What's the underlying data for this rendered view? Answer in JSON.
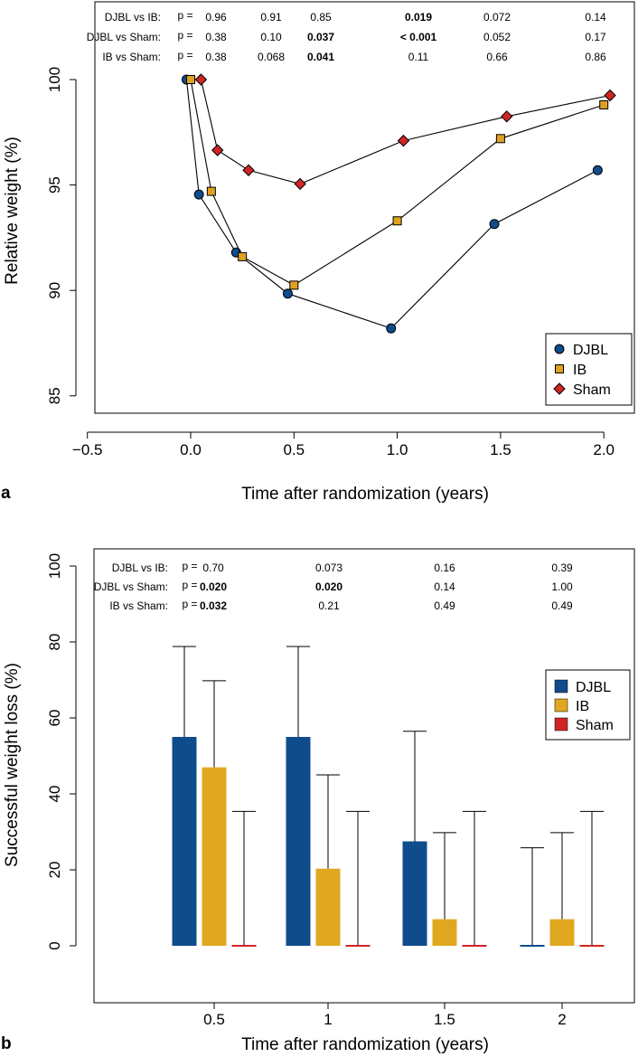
{
  "chart_data": [
    {
      "panel_label": "a",
      "type": "line",
      "title": "",
      "xlabel": "Time after randomization (years)",
      "ylabel": "Relative weight (%)",
      "xlim": [
        -0.5,
        2.1
      ],
      "ylim": [
        84,
        103.5
      ],
      "xticks": [
        "−0.5",
        "0.0",
        "0.5",
        "1.0",
        "1.5",
        "2.0"
      ],
      "xtick_values": [
        -0.5,
        0.0,
        0.5,
        1.0,
        1.5,
        2.0
      ],
      "yticks": [
        "85",
        "90",
        "95",
        "100"
      ],
      "ytick_values": [
        85,
        90,
        95,
        100
      ],
      "legend": "bottom-right",
      "series": [
        {
          "name": "DJBL",
          "marker": "circle",
          "color": "#0f4c8c",
          "x": [
            -0.02,
            0.04,
            0.22,
            0.47,
            0.97,
            1.47,
            1.97
          ],
          "y": [
            100.0,
            94.55,
            91.8,
            89.85,
            88.2,
            93.15,
            95.7
          ]
        },
        {
          "name": "IB",
          "marker": "square",
          "color": "#e0a020",
          "x": [
            0.0,
            0.1,
            0.25,
            0.5,
            1.0,
            1.5,
            2.0
          ],
          "y": [
            100.0,
            94.7,
            91.6,
            90.25,
            93.3,
            97.2,
            98.8
          ]
        },
        {
          "name": "Sham",
          "marker": "diamond",
          "color": "#d02525",
          "x": [
            0.05,
            0.13,
            0.28,
            0.53,
            1.03,
            1.53,
            2.03
          ],
          "y": [
            100.0,
            96.65,
            95.7,
            95.05,
            97.1,
            98.25,
            99.25
          ]
        }
      ],
      "pvalues": {
        "label_prefix": "p =",
        "rows": [
          {
            "label": "DJBL vs IB:",
            "values": [
              "0.96",
              "0.91",
              "0.85",
              "0.019",
              "0.072",
              "0.14"
            ],
            "bold": [
              false,
              false,
              false,
              true,
              false,
              false
            ]
          },
          {
            "label": "DJBL vs Sham:",
            "values": [
              "0.38",
              "0.10",
              "0.037",
              "< 0.001",
              "0.052",
              "0.17"
            ],
            "bold": [
              false,
              false,
              true,
              true,
              false,
              false
            ]
          },
          {
            "label": "IB vs Sham:",
            "values": [
              "0.38",
              "0.068",
              "0.041",
              "0.11",
              "0.66",
              "0.86"
            ],
            "bold": [
              false,
              false,
              true,
              false,
              false,
              false
            ]
          }
        ]
      }
    },
    {
      "panel_label": "b",
      "type": "bar",
      "title": "",
      "xlabel": "Time after randomization (years)",
      "ylabel": "Successful weight loss (%)",
      "ylim": [
        0,
        100
      ],
      "categories": [
        "0.5",
        "1",
        "1.5",
        "2"
      ],
      "yticks": [
        "0",
        "20",
        "40",
        "60",
        "80",
        "100"
      ],
      "ytick_values": [
        0,
        20,
        40,
        60,
        80,
        100
      ],
      "legend": "right",
      "series": [
        {
          "name": "DJBL",
          "color": "#0f4c8c",
          "values": [
            55,
            55,
            27.5,
            0
          ],
          "error_upper": [
            78.8,
            78.8,
            56.5,
            25.8
          ]
        },
        {
          "name": "IB",
          "color": "#e0a820",
          "values": [
            47,
            20.3,
            7,
            7
          ],
          "error_upper": [
            69.8,
            45,
            29.8,
            29.8
          ]
        },
        {
          "name": "Sham",
          "color": "#d02525",
          "values": [
            0,
            0,
            0,
            0
          ],
          "error_upper": [
            35.4,
            35.4,
            35.4,
            35.4
          ]
        }
      ],
      "pvalues": {
        "label_prefix": "p =",
        "rows": [
          {
            "label": "DJBL vs IB:",
            "values": [
              "0.70",
              "0.073",
              "0.16",
              "0.39"
            ],
            "bold": [
              false,
              false,
              false,
              false
            ]
          },
          {
            "label": "DJBL vs Sham:",
            "values": [
              "0.020",
              "0.020",
              "0.14",
              "1.00"
            ],
            "bold": [
              true,
              true,
              false,
              false
            ]
          },
          {
            "label": "IB vs Sham:",
            "values": [
              "0.032",
              "0.21",
              "0.49",
              "0.49"
            ],
            "bold": [
              true,
              false,
              false,
              false
            ]
          }
        ]
      }
    }
  ]
}
